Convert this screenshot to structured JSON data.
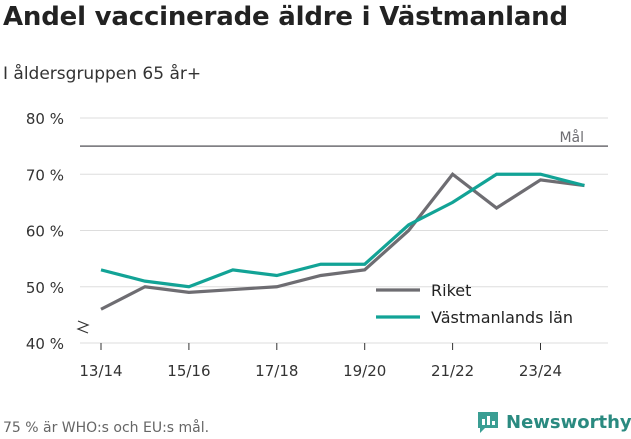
{
  "header": {
    "title": "Andel vaccinerade äldre i Västmanland",
    "subtitle": "I åldersgruppen 65 år+"
  },
  "footnote": "75 % är WHO:s och EU:s mål.",
  "brand": {
    "name": "Newsworthy",
    "icon": "bar-chart-logo-icon",
    "color": "#3a9e93"
  },
  "colors": {
    "riket": "#6e6d72",
    "lan": "#12a396",
    "grid": "#dddddd",
    "target": "#6e6d72"
  },
  "chart_data": {
    "type": "line",
    "x": [
      "13/14",
      "14/15",
      "15/16",
      "16/17",
      "17/18",
      "18/19",
      "19/20",
      "20/21",
      "21/22",
      "22/23",
      "23/24",
      "24/25"
    ],
    "tick_labels": [
      "13/14",
      "15/16",
      "17/18",
      "19/20",
      "21/22",
      "23/24"
    ],
    "series": [
      {
        "name": "Riket",
        "color": "#6e6d72",
        "values": [
          46,
          50,
          49,
          49.5,
          50,
          52,
          53,
          60,
          70,
          64,
          69,
          68
        ]
      },
      {
        "name": "Västmanlands län",
        "color": "#12a396",
        "values": [
          53,
          51,
          50,
          53,
          52,
          54,
          54,
          61,
          65,
          70,
          70,
          68
        ]
      }
    ],
    "ylim": [
      40,
      80
    ],
    "yticks": [
      {
        "value": 40,
        "label": "40 %"
      },
      {
        "value": 50,
        "label": "50 %"
      },
      {
        "value": 60,
        "label": "60 %"
      },
      {
        "value": 70,
        "label": "70 %"
      },
      {
        "value": 80,
        "label": "80 %"
      }
    ],
    "target": {
      "value": 75,
      "label": "Mål"
    },
    "legend_position": "bottom-right",
    "grid": true
  }
}
